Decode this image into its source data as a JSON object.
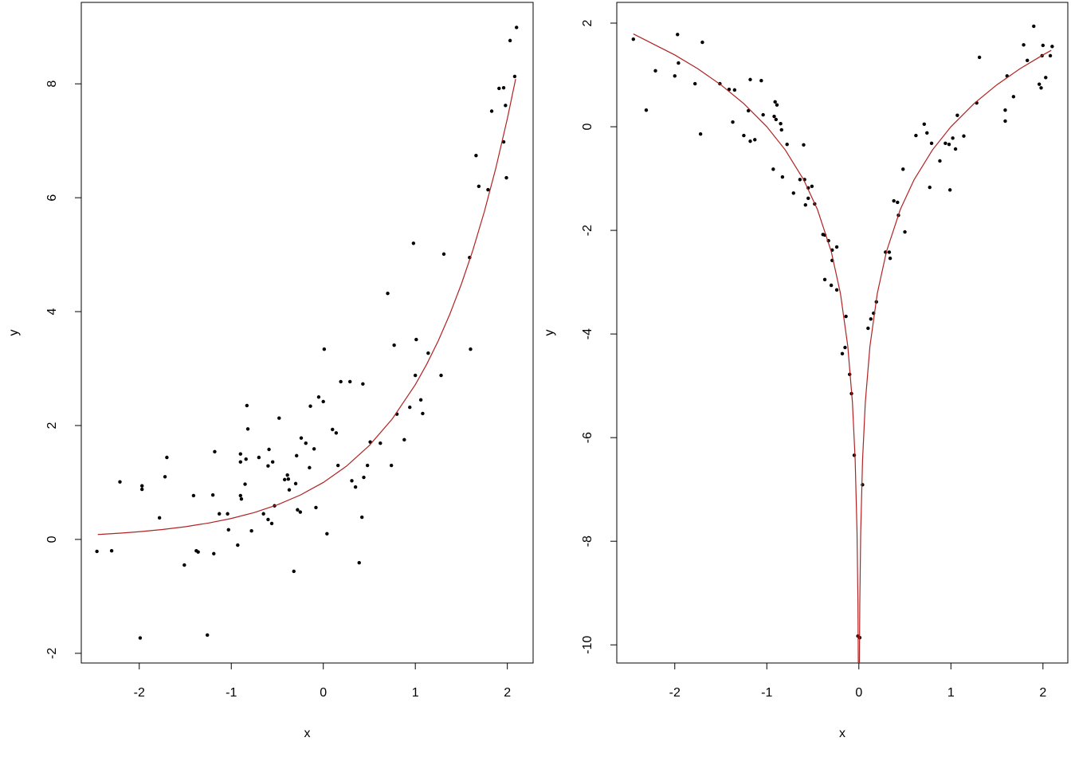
{
  "chart_data": [
    {
      "type": "scatter",
      "xlabel": "x",
      "ylabel": "y",
      "xlim": [
        -2.63,
        2.28
      ],
      "ylim": [
        -2.17,
        9.43
      ],
      "xticks": [
        -2,
        -1,
        0,
        1,
        2
      ],
      "yticks": [
        -2,
        0,
        2,
        4,
        6,
        8
      ],
      "series": [
        {
          "type": "scatter",
          "color": "#000000",
          "x": [
            -2.46,
            -2.3,
            -2.21,
            -1.97,
            -1.97,
            -1.99,
            -1.78,
            -1.72,
            -1.7,
            -1.51,
            -1.41,
            -1.38,
            -1.36,
            -1.26,
            -1.2,
            -1.19,
            -1.18,
            -1.13,
            -1.04,
            -1.03,
            -0.93,
            -0.9,
            -0.9,
            -0.9,
            -0.89,
            -0.85,
            -0.84,
            -0.83,
            -0.82,
            -0.78,
            -0.7,
            -0.65,
            -0.6,
            -0.6,
            -0.59,
            -0.56,
            -0.55,
            -0.53,
            -0.48,
            -0.42,
            -0.39,
            -0.38,
            -0.37,
            -0.32,
            -0.3,
            -0.29,
            -0.28,
            -0.25,
            -0.24,
            -0.19,
            -0.15,
            -0.14,
            -0.1,
            -0.08,
            -0.05,
            0.0,
            0.01,
            0.04,
            0.1,
            0.14,
            0.16,
            0.19,
            0.29,
            0.31,
            0.35,
            0.39,
            0.42,
            0.43,
            0.44,
            0.48,
            0.51,
            0.62,
            0.7,
            0.74,
            0.77,
            0.8,
            0.88,
            0.94,
            0.98,
            1.0,
            1.01,
            1.06,
            1.08,
            1.14,
            1.28,
            1.31,
            1.59,
            1.6,
            1.66,
            1.69,
            1.79,
            1.83,
            1.91,
            1.96,
            1.96,
            1.98,
            1.99,
            2.03,
            2.08,
            2.1
          ],
          "values": [
            -0.21,
            -0.2,
            1.01,
            0.94,
            0.88,
            -1.73,
            0.38,
            1.1,
            1.44,
            -0.45,
            0.77,
            -0.2,
            -0.22,
            -1.68,
            0.78,
            -0.25,
            1.54,
            0.45,
            0.45,
            0.17,
            -0.1,
            1.5,
            1.36,
            0.77,
            0.71,
            0.97,
            1.41,
            2.35,
            1.94,
            0.15,
            1.44,
            0.45,
            0.35,
            1.29,
            1.58,
            0.28,
            1.36,
            0.59,
            2.13,
            1.05,
            1.13,
            1.06,
            0.87,
            -0.56,
            0.98,
            1.47,
            0.52,
            0.48,
            1.78,
            1.69,
            1.26,
            2.34,
            1.59,
            0.56,
            2.5,
            2.42,
            3.34,
            0.1,
            1.93,
            1.87,
            1.3,
            2.77,
            2.77,
            1.03,
            0.92,
            -0.41,
            0.39,
            2.73,
            1.09,
            1.3,
            1.71,
            1.69,
            4.32,
            1.3,
            3.41,
            2.2,
            1.75,
            2.32,
            5.2,
            2.88,
            3.51,
            2.45,
            2.21,
            3.27,
            2.88,
            5.01,
            4.95,
            3.34,
            6.74,
            6.2,
            6.14,
            7.52,
            7.92,
            7.93,
            6.98,
            7.62,
            6.35,
            8.76,
            8.13,
            8.99
          ]
        },
        {
          "type": "line",
          "color": "#b22222",
          "x": [
            -2.45,
            -2.2,
            -2,
            -1.75,
            -1.5,
            -1.25,
            -1,
            -0.75,
            -0.5,
            -0.25,
            0,
            0.25,
            0.5,
            0.75,
            1,
            1.125,
            1.25,
            1.375,
            1.5,
            1.625,
            1.75,
            1.875,
            2,
            2.09
          ],
          "values": [
            0.086,
            0.111,
            0.135,
            0.174,
            0.223,
            0.287,
            0.368,
            0.472,
            0.607,
            0.779,
            1,
            1.284,
            1.649,
            2.117,
            2.718,
            3.08,
            3.49,
            3.955,
            4.482,
            5.078,
            5.755,
            6.521,
            7.389,
            8.085
          ]
        }
      ]
    },
    {
      "type": "scatter",
      "xlabel": "x",
      "ylabel": "y",
      "xlim": [
        -2.63,
        2.27
      ],
      "ylim": [
        -10.35,
        2.4
      ],
      "xticks": [
        -2,
        -1,
        0,
        1,
        2
      ],
      "yticks": [
        -10,
        -8,
        -6,
        -4,
        -2,
        0,
        2
      ],
      "series": [
        {
          "type": "scatter",
          "color": "#000000",
          "x": [
            -2.45,
            -2.31,
            -2.21,
            -2.0,
            -1.97,
            -1.96,
            -1.78,
            -1.72,
            -1.7,
            -1.51,
            -1.41,
            -1.37,
            -1.35,
            -1.25,
            -1.2,
            -1.18,
            -1.18,
            -1.13,
            -1.06,
            -1.04,
            -0.93,
            -0.92,
            -0.91,
            -0.9,
            -0.89,
            -0.85,
            -0.84,
            -0.83,
            -0.78,
            -0.71,
            -0.64,
            -0.6,
            -0.59,
            -0.58,
            -0.55,
            -0.55,
            -0.51,
            -0.48,
            -0.39,
            -0.37,
            -0.37,
            -0.33,
            -0.3,
            -0.29,
            -0.29,
            -0.24,
            -0.24,
            -0.18,
            -0.15,
            -0.14,
            -0.1,
            -0.08,
            -0.05,
            -0.01,
            0.01,
            0.04,
            0.1,
            0.13,
            0.16,
            0.19,
            0.29,
            0.33,
            0.34,
            0.38,
            0.42,
            0.43,
            0.48,
            0.5,
            0.62,
            0.71,
            0.74,
            0.77,
            0.79,
            0.88,
            0.94,
            0.98,
            0.99,
            1.02,
            1.05,
            1.07,
            1.14,
            1.28,
            1.31,
            1.59,
            1.59,
            1.61,
            1.68,
            1.79,
            1.83,
            1.9,
            1.96,
            1.98,
            1.99,
            2.0,
            2.03,
            2.08,
            2.1
          ],
          "values": [
            1.69,
            0.32,
            1.08,
            0.98,
            1.78,
            1.23,
            0.83,
            -0.14,
            1.63,
            0.83,
            0.72,
            0.09,
            0.71,
            -0.17,
            0.31,
            0.91,
            -0.28,
            -0.25,
            0.89,
            0.23,
            -0.82,
            0.2,
            0.48,
            0.14,
            0.42,
            0.06,
            -0.06,
            -0.97,
            -0.34,
            -1.28,
            -1.02,
            -0.35,
            -1.02,
            -1.51,
            -1.38,
            -1.18,
            -1.15,
            -1.49,
            -2.08,
            -2.09,
            -2.95,
            -2.2,
            -3.06,
            -2.38,
            -2.58,
            -2.32,
            -3.15,
            -4.38,
            -4.26,
            -3.66,
            -4.78,
            -5.15,
            -6.34,
            -9.83,
            -9.86,
            -6.91,
            -3.89,
            -3.71,
            -3.6,
            -3.38,
            -2.42,
            -2.42,
            -2.54,
            -1.43,
            -1.46,
            -1.71,
            -0.82,
            -2.03,
            -0.17,
            0.05,
            -0.12,
            -1.17,
            -0.32,
            -0.66,
            -0.32,
            -0.34,
            -1.22,
            -0.22,
            -0.43,
            0.22,
            -0.18,
            0.46,
            1.34,
            0.11,
            0.32,
            0.98,
            0.58,
            1.58,
            1.28,
            1.94,
            0.82,
            0.75,
            1.37,
            1.57,
            0.95,
            1.37,
            1.55
          ]
        },
        {
          "type": "line",
          "color": "#b22222",
          "x": [
            -2.45,
            -2,
            -1.75,
            -1.5,
            -1.25,
            -1,
            -0.8,
            -0.6,
            -0.45,
            -0.3,
            -0.2,
            -0.12,
            -0.07,
            -0.04,
            -0.02,
            -0.01,
            -0.005,
            0,
            0.005,
            0.01,
            0.02,
            0.04,
            0.07,
            0.12,
            0.2,
            0.3,
            0.45,
            0.6,
            0.8,
            1,
            1.25,
            1.5,
            1.75,
            2,
            2.09
          ],
          "values": [
            1.792,
            1.386,
            1.119,
            0.811,
            0.446,
            0,
            -0.446,
            -1.022,
            -1.597,
            -2.408,
            -3.219,
            -4.241,
            -5.319,
            -6.438,
            -7.824,
            -9.21,
            -10.597,
            null,
            -10.597,
            -9.21,
            -7.824,
            -6.438,
            -5.319,
            -4.241,
            -3.219,
            -2.408,
            -1.597,
            -1.022,
            -0.446,
            0,
            0.446,
            0.811,
            1.119,
            1.386,
            1.474
          ]
        }
      ]
    }
  ]
}
